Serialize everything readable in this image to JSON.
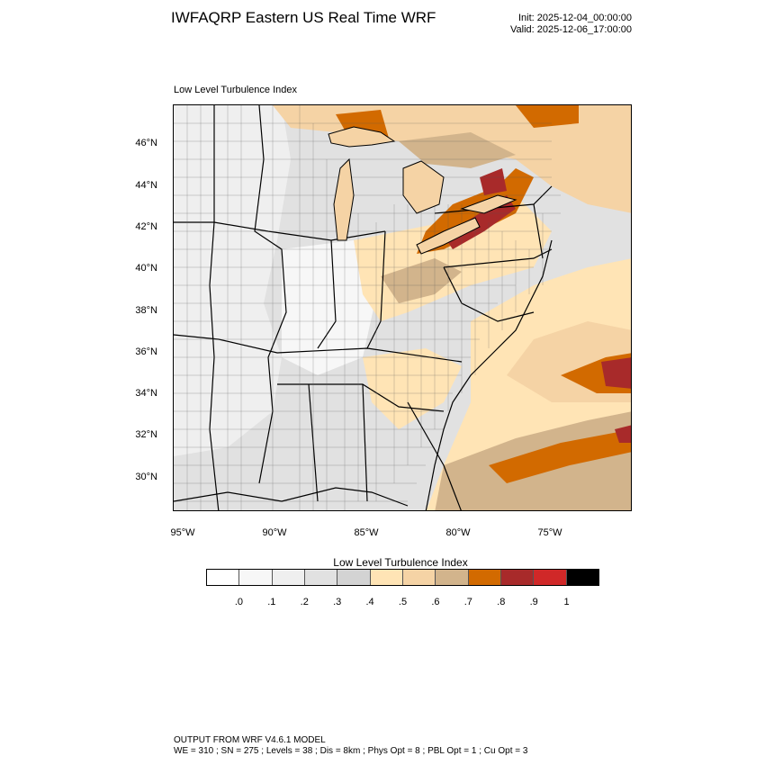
{
  "header": {
    "title": "IWFAQRP Eastern US Real Time WRF",
    "init": "Init: 2025-12-04_00:00:00",
    "valid": "Valid: 2025-12-06_17:00:00"
  },
  "map": {
    "panel_label": "Low Level Turbulence Index",
    "lat_ticks": [
      "46°N",
      "44°N",
      "42°N",
      "40°N",
      "38°N",
      "36°N",
      "34°N",
      "32°N",
      "30°N"
    ],
    "lon_ticks": [
      "95°W",
      "90°W",
      "85°W",
      "80°W",
      "75°W"
    ],
    "background_color": "#e8e8e8",
    "line_color": "#000000"
  },
  "colorbar": {
    "title": "Low Level Turbulence Index",
    "colors": [
      "#ffffff",
      "#f7f7f7",
      "#efefef",
      "#e1e1e1",
      "#d3d3d3",
      "#ffe4b5",
      "#f5d3a5",
      "#d2b48c",
      "#d26a00",
      "#a82a2a",
      "#d02828",
      "#000000"
    ],
    "labels": [
      ".0",
      ".1",
      ".2",
      ".3",
      ".4",
      ".5",
      ".6",
      ".7",
      ".8",
      ".9",
      "1"
    ]
  },
  "footer": {
    "line1": "OUTPUT FROM WRF V4.6.1 MODEL",
    "line2": "WE = 310 ; SN = 275 ; Levels = 38 ; Dis = 8km ; Phys Opt = 8 ; PBL Opt = 1 ; Cu Opt = 3"
  }
}
